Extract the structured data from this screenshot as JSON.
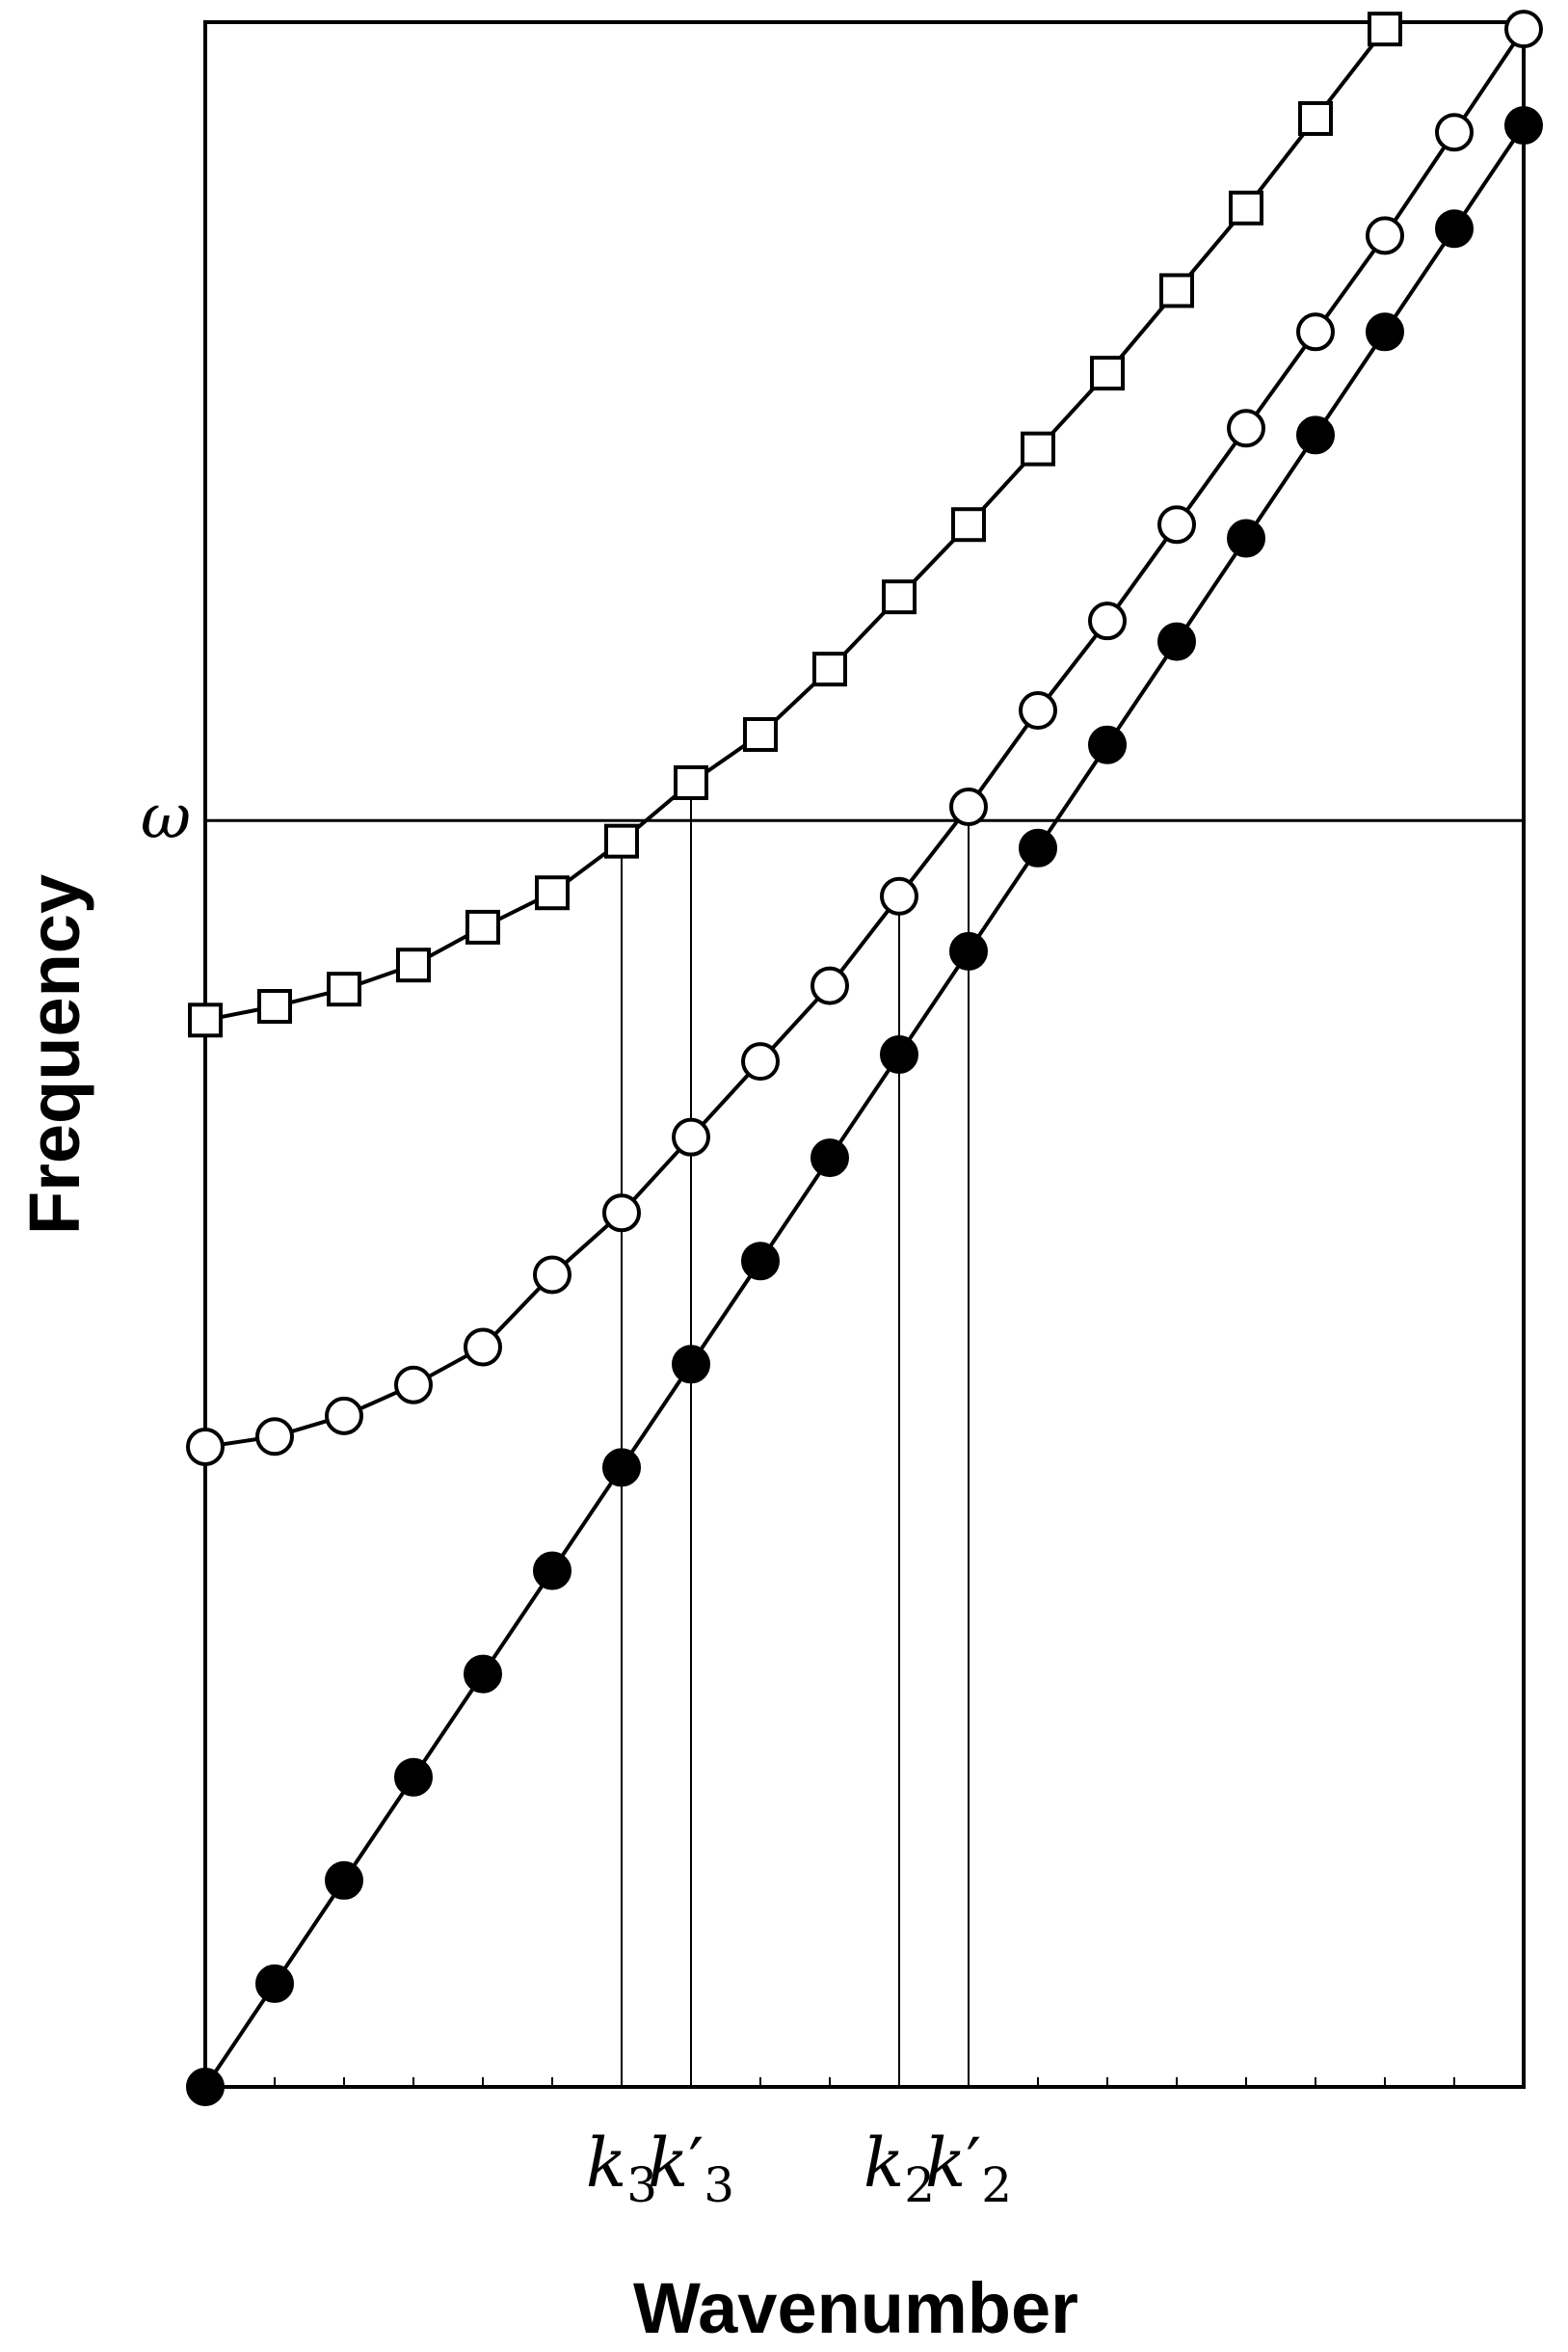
{
  "chart_data": {
    "type": "line",
    "xlabel": "Wavenumber",
    "ylabel": "Frequency",
    "xlim": [
      0,
      19
    ],
    "ylim": [
      0,
      30
    ],
    "grid": false,
    "x": [
      0,
      1,
      2,
      3,
      4,
      5,
      6,
      7,
      8,
      9,
      10,
      11,
      12,
      13,
      14,
      15,
      16,
      17,
      18,
      19
    ],
    "series": [
      {
        "marker": "filled-circle",
        "color": "#000000",
        "x": [
          0,
          1,
          2,
          3,
          4,
          5,
          6,
          7,
          8,
          9,
          10,
          11,
          12,
          13,
          14,
          15,
          16,
          17,
          18,
          19
        ],
        "values": [
          0,
          1.5,
          3.0,
          4.5,
          6.0,
          7.5,
          9.0,
          10.5,
          12.0,
          13.5,
          15.0,
          16.5,
          18.0,
          19.5,
          21.0,
          22.5,
          24.0,
          25.5,
          27.0,
          28.5
        ]
      },
      {
        "marker": "open-circle",
        "color": "#000000",
        "x": [
          0,
          1,
          2,
          3,
          4,
          5,
          6,
          7,
          8,
          9,
          10,
          11,
          12,
          13,
          14,
          15,
          16,
          17,
          18,
          19
        ],
        "values": [
          9.3,
          9.45,
          9.75,
          10.2,
          10.75,
          11.8,
          12.7,
          13.8,
          14.9,
          16.0,
          17.3,
          18.6,
          20.0,
          21.3,
          22.7,
          24.1,
          25.5,
          26.9,
          28.4,
          29.9
        ]
      },
      {
        "marker": "open-square",
        "color": "#000000",
        "x": [
          0,
          1,
          2,
          3,
          4,
          5,
          6,
          7,
          8,
          9,
          10,
          11,
          12,
          13,
          14,
          15,
          16,
          17
        ],
        "values": [
          15.5,
          15.7,
          15.95,
          16.3,
          16.85,
          17.35,
          18.1,
          18.95,
          19.65,
          20.6,
          21.65,
          22.7,
          23.8,
          24.9,
          26.1,
          27.3,
          28.6,
          29.9
        ]
      }
    ],
    "hline": {
      "label": "ω",
      "y": 18.4
    },
    "vlines": [
      {
        "label": "k3",
        "x": 6
      },
      {
        "label": "k'3",
        "x": 7
      },
      {
        "label": "k2",
        "x": 10
      },
      {
        "label": "k'2",
        "x": 11
      }
    ],
    "xtick_labels": [
      {
        "base": "k",
        "prime": "",
        "sub": "3"
      },
      {
        "base": "k",
        "prime": "′",
        "sub": "3"
      },
      {
        "base": "k",
        "prime": "",
        "sub": "2"
      },
      {
        "base": "k",
        "prime": "′",
        "sub": "2"
      }
    ]
  }
}
